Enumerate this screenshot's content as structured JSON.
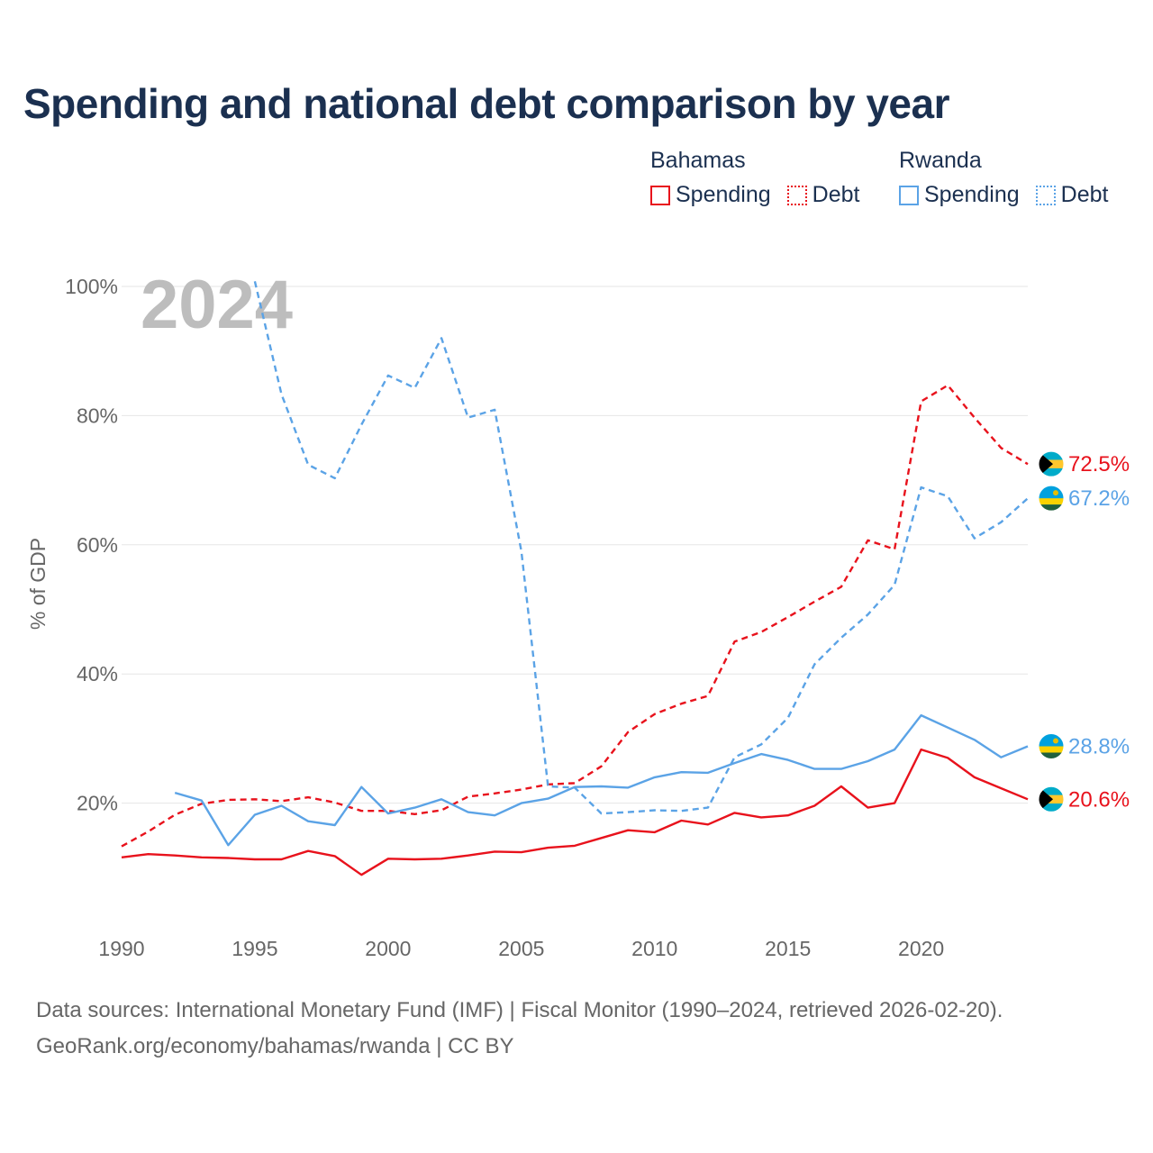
{
  "chart_data": {
    "type": "line",
    "title": "Spending and national debt comparison by year",
    "year_watermark": "2024",
    "ylabel": "% of GDP",
    "xlabel": "",
    "xlim": [
      1990,
      2024
    ],
    "ylim": [
      0,
      100
    ],
    "y_ticks": [
      20,
      40,
      60,
      80,
      100
    ],
    "y_tick_labels": [
      "20%",
      "40%",
      "60%",
      "80%",
      "100%"
    ],
    "x_ticks": [
      1990,
      1995,
      2000,
      2005,
      2010,
      2015,
      2020
    ],
    "x_tick_labels": [
      "1990",
      "1995",
      "2000",
      "2005",
      "2010",
      "2015",
      "2020"
    ],
    "grid": true,
    "legend": {
      "groups": [
        {
          "country": "Bahamas",
          "items": [
            {
              "label": "Spending",
              "style": "solid",
              "color": "#e8121c"
            },
            {
              "label": "Debt",
              "style": "dotted",
              "color": "#e8121c"
            }
          ]
        },
        {
          "country": "Rwanda",
          "items": [
            {
              "label": "Spending",
              "style": "solid",
              "color": "#5ba3e6"
            },
            {
              "label": "Debt",
              "style": "dotted",
              "color": "#5ba3e6"
            }
          ]
        }
      ]
    },
    "series": [
      {
        "name": "Bahamas Debt",
        "country": "Bahamas",
        "metric": "Debt",
        "color": "#e8121c",
        "dashed": true,
        "end_label": "72.5%",
        "x": [
          1990,
          1991,
          1992,
          1993,
          1994,
          1995,
          1996,
          1997,
          1998,
          1999,
          2000,
          2001,
          2002,
          2003,
          2004,
          2005,
          2006,
          2007,
          2008,
          2009,
          2010,
          2011,
          2012,
          2013,
          2014,
          2015,
          2016,
          2017,
          2018,
          2019,
          2020,
          2021,
          2022,
          2023,
          2024
        ],
        "values": [
          13.3,
          15.6,
          18.2,
          19.9,
          20.5,
          20.6,
          20.3,
          20.9,
          20.1,
          18.8,
          18.8,
          18.3,
          18.9,
          21.0,
          21.5,
          22.1,
          22.9,
          23.1,
          25.7,
          31.0,
          33.8,
          35.4,
          36.6,
          45.0,
          46.5,
          48.8,
          51.2,
          53.5,
          60.7,
          59.3,
          82.2,
          84.7,
          79.7,
          75.0,
          72.5
        ]
      },
      {
        "name": "Rwanda Debt",
        "country": "Rwanda",
        "metric": "Debt",
        "color": "#5ba3e6",
        "dashed": true,
        "end_label": "67.2%",
        "x": [
          1995,
          1996,
          1997,
          1998,
          1999,
          2000,
          2001,
          2002,
          2003,
          2004,
          2005,
          2006,
          2007,
          2008,
          2009,
          2010,
          2011,
          2012,
          2013,
          2014,
          2015,
          2016,
          2017,
          2018,
          2019,
          2020,
          2021,
          2022,
          2023,
          2024
        ],
        "values": [
          100.8,
          83.3,
          72.4,
          70.3,
          78.6,
          86.2,
          84.3,
          92.0,
          79.7,
          80.9,
          59.0,
          22.6,
          22.4,
          18.4,
          18.6,
          18.9,
          18.8,
          19.3,
          27.1,
          29.1,
          33.2,
          41.5,
          45.6,
          49.2,
          53.8,
          68.9,
          67.5,
          61.0,
          63.5,
          67.2
        ]
      },
      {
        "name": "Rwanda Spending",
        "country": "Rwanda",
        "metric": "Spending",
        "color": "#5ba3e6",
        "dashed": false,
        "end_label": "28.8%",
        "x": [
          1992,
          1993,
          1994,
          1995,
          1996,
          1997,
          1998,
          1999,
          2000,
          2001,
          2002,
          2003,
          2004,
          2005,
          2006,
          2007,
          2008,
          2009,
          2010,
          2011,
          2012,
          2013,
          2014,
          2015,
          2016,
          2017,
          2018,
          2019,
          2020,
          2021,
          2022,
          2023,
          2024
        ],
        "values": [
          21.6,
          20.4,
          13.5,
          18.2,
          19.6,
          17.2,
          16.6,
          22.5,
          18.4,
          19.3,
          20.6,
          18.6,
          18.1,
          20.0,
          20.7,
          22.5,
          22.6,
          22.4,
          24.0,
          24.8,
          24.7,
          26.2,
          27.6,
          26.7,
          25.3,
          25.3,
          26.5,
          28.3,
          33.6,
          31.7,
          29.8,
          27.1,
          28.8
        ]
      },
      {
        "name": "Bahamas Spending",
        "country": "Bahamas",
        "metric": "Spending",
        "color": "#e8121c",
        "dashed": false,
        "end_label": "20.6%",
        "x": [
          1990,
          1991,
          1992,
          1993,
          1994,
          1995,
          1996,
          1997,
          1998,
          1999,
          2000,
          2001,
          2002,
          2003,
          2004,
          2005,
          2006,
          2007,
          2008,
          2009,
          2010,
          2011,
          2012,
          2013,
          2014,
          2015,
          2016,
          2017,
          2018,
          2019,
          2020,
          2021,
          2022,
          2023,
          2024
        ],
        "values": [
          11.6,
          12.1,
          11.9,
          11.6,
          11.5,
          11.3,
          11.3,
          12.6,
          11.8,
          8.9,
          11.4,
          11.3,
          11.4,
          11.9,
          12.5,
          12.4,
          13.1,
          13.4,
          14.6,
          15.8,
          15.5,
          17.3,
          16.7,
          18.5,
          17.8,
          18.1,
          19.6,
          22.6,
          19.3,
          20.0,
          28.3,
          27.0,
          24.0,
          22.3,
          20.6
        ]
      }
    ],
    "footer": {
      "line1": "Data sources: International Monetary Fund (IMF) | Fiscal Monitor (1990–2024, retrieved 2026-02-20).",
      "line2": "GeoRank.org/economy/bahamas/rwanda | CC BY"
    }
  }
}
